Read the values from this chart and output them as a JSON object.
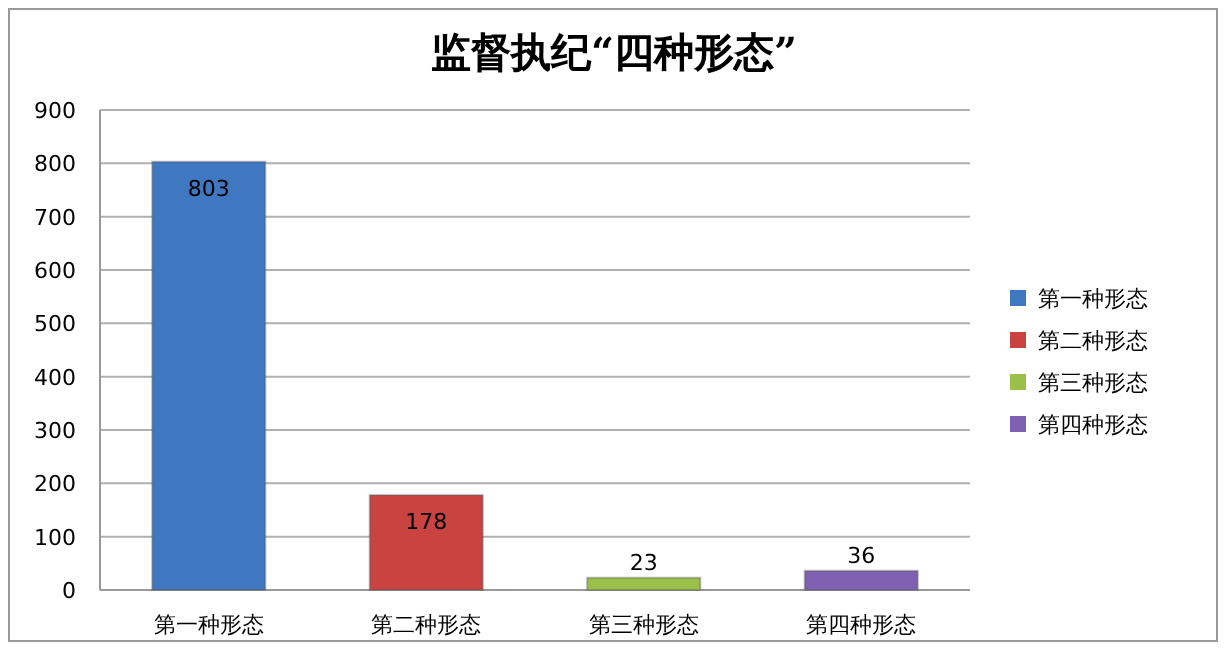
{
  "chart_data": {
    "type": "bar",
    "title": "监督执纪“四种形态”",
    "categories": [
      "第一种形态",
      "第二种形态",
      "第三种形态",
      "第四种形态"
    ],
    "series": [
      {
        "name": "第一种形态",
        "color": "#3f78c0",
        "values": [
          803,
          null,
          null,
          null
        ]
      },
      {
        "name": "第二种形态",
        "color": "#c94340",
        "values": [
          null,
          178,
          null,
          null
        ]
      },
      {
        "name": "第三种形态",
        "color": "#9bc04a",
        "values": [
          null,
          null,
          23,
          null
        ]
      },
      {
        "name": "第四种形态",
        "color": "#7e5fb0",
        "values": [
          null,
          null,
          null,
          36
        ]
      }
    ],
    "ylim": [
      0,
      900
    ],
    "yticks": [
      0,
      100,
      200,
      300,
      400,
      500,
      600,
      700,
      800,
      900
    ],
    "grid": "y",
    "legend": "right",
    "data_labels": true
  }
}
